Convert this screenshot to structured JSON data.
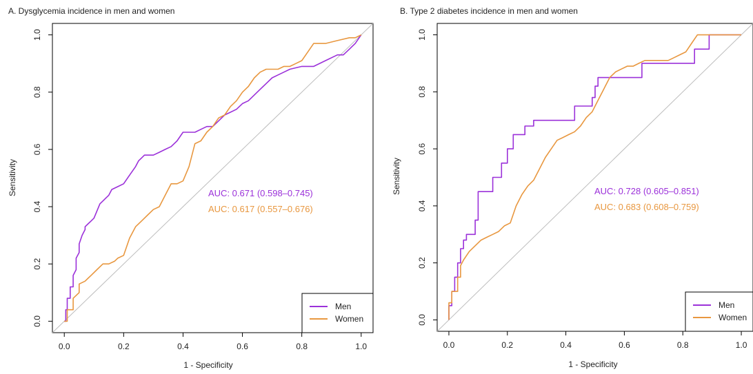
{
  "figure": {
    "colors": {
      "men": "#9b30d9",
      "women": "#e8973f",
      "reference": "#bdbdbd",
      "axis": "#000000",
      "text": "#222222"
    }
  },
  "chart_data": [
    {
      "type": "line",
      "title": "A. Dysglycemia incidence in men and women",
      "xlabel": "1 - Specificity",
      "ylabel": "Sensitivity",
      "xlim": [
        -0.04,
        1.04
      ],
      "ylim": [
        -0.04,
        1.04
      ],
      "xticks": [
        "0.0",
        "0.2",
        "0.4",
        "0.6",
        "0.8",
        "1.0"
      ],
      "yticks": [
        "0.0",
        "0.2",
        "0.4",
        "0.6",
        "0.8",
        "1.0"
      ],
      "grid": false,
      "legend": {
        "position": "bottom-right",
        "entries": [
          "Men",
          "Women"
        ]
      },
      "annotations": [
        {
          "text": "AUC: 0.671 (0.598–0.745)",
          "series": "Men"
        },
        {
          "text": "AUC: 0.617 (0.557–0.676)",
          "series": "Women"
        }
      ],
      "series": [
        {
          "name": "Men",
          "x": [
            0.0,
            0.005,
            0.005,
            0.01,
            0.01,
            0.02,
            0.02,
            0.03,
            0.03,
            0.04,
            0.04,
            0.05,
            0.05,
            0.06,
            0.07,
            0.07,
            0.08,
            0.09,
            0.1,
            0.12,
            0.13,
            0.14,
            0.15,
            0.16,
            0.18,
            0.2,
            0.22,
            0.24,
            0.25,
            0.26,
            0.27,
            0.3,
            0.32,
            0.34,
            0.36,
            0.38,
            0.4,
            0.44,
            0.46,
            0.48,
            0.5,
            0.52,
            0.54,
            0.56,
            0.58,
            0.6,
            0.62,
            0.64,
            0.66,
            0.68,
            0.7,
            0.72,
            0.74,
            0.76,
            0.8,
            0.84,
            0.88,
            0.92,
            0.94,
            0.96,
            0.98,
            1.0
          ],
          "y": [
            0.0,
            0.0,
            0.04,
            0.04,
            0.08,
            0.08,
            0.12,
            0.12,
            0.16,
            0.18,
            0.22,
            0.24,
            0.27,
            0.3,
            0.32,
            0.33,
            0.34,
            0.35,
            0.36,
            0.41,
            0.42,
            0.43,
            0.44,
            0.46,
            0.47,
            0.48,
            0.51,
            0.54,
            0.56,
            0.57,
            0.58,
            0.58,
            0.59,
            0.6,
            0.61,
            0.63,
            0.66,
            0.66,
            0.67,
            0.68,
            0.68,
            0.7,
            0.72,
            0.73,
            0.74,
            0.76,
            0.77,
            0.79,
            0.81,
            0.83,
            0.85,
            0.86,
            0.87,
            0.88,
            0.89,
            0.89,
            0.91,
            0.93,
            0.93,
            0.95,
            0.97,
            1.0
          ]
        },
        {
          "name": "Women",
          "x": [
            0.0,
            0.01,
            0.01,
            0.03,
            0.03,
            0.05,
            0.05,
            0.07,
            0.08,
            0.09,
            0.11,
            0.13,
            0.15,
            0.17,
            0.18,
            0.2,
            0.21,
            0.22,
            0.24,
            0.26,
            0.28,
            0.3,
            0.32,
            0.34,
            0.36,
            0.38,
            0.4,
            0.42,
            0.44,
            0.46,
            0.48,
            0.5,
            0.52,
            0.54,
            0.56,
            0.58,
            0.6,
            0.62,
            0.64,
            0.66,
            0.68,
            0.7,
            0.72,
            0.74,
            0.76,
            0.78,
            0.8,
            0.82,
            0.84,
            0.88,
            0.92,
            0.96,
            0.98,
            1.0
          ],
          "y": [
            0.0,
            0.0,
            0.04,
            0.04,
            0.08,
            0.1,
            0.13,
            0.14,
            0.15,
            0.16,
            0.18,
            0.2,
            0.2,
            0.21,
            0.22,
            0.23,
            0.26,
            0.29,
            0.33,
            0.35,
            0.37,
            0.39,
            0.4,
            0.44,
            0.48,
            0.48,
            0.49,
            0.54,
            0.62,
            0.63,
            0.66,
            0.68,
            0.71,
            0.72,
            0.75,
            0.77,
            0.8,
            0.82,
            0.85,
            0.87,
            0.88,
            0.88,
            0.88,
            0.89,
            0.89,
            0.9,
            0.91,
            0.94,
            0.97,
            0.97,
            0.98,
            0.99,
            0.99,
            1.0
          ]
        }
      ]
    },
    {
      "type": "line",
      "title": "B. Type 2 diabetes incidence in men and women",
      "xlabel": "1 - Specificity",
      "ylabel": "Sensitivity",
      "xlim": [
        -0.04,
        1.04
      ],
      "ylim": [
        -0.04,
        1.04
      ],
      "xticks": [
        "0.0",
        "0.2",
        "0.4",
        "0.6",
        "0.8",
        "1.0"
      ],
      "yticks": [
        "0.0",
        "0.2",
        "0.4",
        "0.6",
        "0.8",
        "1.0"
      ],
      "grid": false,
      "legend": {
        "position": "bottom-right",
        "entries": [
          "Men",
          "Women"
        ]
      },
      "annotations": [
        {
          "text": "AUC: 0.728 (0.605–0.851)",
          "series": "Men"
        },
        {
          "text": "AUC: 0.683 (0.608–0.759)",
          "series": "Women"
        }
      ],
      "series": [
        {
          "name": "Men",
          "x": [
            0.0,
            0.0,
            0.01,
            0.01,
            0.02,
            0.02,
            0.03,
            0.03,
            0.04,
            0.04,
            0.05,
            0.05,
            0.06,
            0.06,
            0.09,
            0.09,
            0.1,
            0.1,
            0.15,
            0.15,
            0.18,
            0.18,
            0.2,
            0.2,
            0.22,
            0.22,
            0.26,
            0.26,
            0.29,
            0.29,
            0.3,
            0.3,
            0.43,
            0.43,
            0.49,
            0.49,
            0.5,
            0.5,
            0.51,
            0.51,
            0.66,
            0.66,
            0.84,
            0.84,
            0.89,
            0.89,
            1.0
          ],
          "y": [
            0.0,
            0.05,
            0.05,
            0.1,
            0.1,
            0.15,
            0.15,
            0.2,
            0.2,
            0.25,
            0.25,
            0.28,
            0.28,
            0.3,
            0.3,
            0.35,
            0.35,
            0.45,
            0.45,
            0.5,
            0.5,
            0.55,
            0.55,
            0.6,
            0.6,
            0.65,
            0.65,
            0.68,
            0.68,
            0.7,
            0.7,
            0.7,
            0.7,
            0.75,
            0.75,
            0.78,
            0.78,
            0.82,
            0.82,
            0.85,
            0.85,
            0.9,
            0.9,
            0.95,
            0.95,
            1.0,
            1.0
          ]
        },
        {
          "name": "Women",
          "x": [
            0.0,
            0.0,
            0.01,
            0.01,
            0.03,
            0.03,
            0.04,
            0.04,
            0.05,
            0.07,
            0.09,
            0.11,
            0.13,
            0.15,
            0.17,
            0.19,
            0.21,
            0.23,
            0.25,
            0.27,
            0.29,
            0.31,
            0.33,
            0.35,
            0.37,
            0.39,
            0.41,
            0.43,
            0.45,
            0.47,
            0.49,
            0.51,
            0.53,
            0.55,
            0.57,
            0.59,
            0.61,
            0.63,
            0.65,
            0.67,
            0.69,
            0.71,
            0.73,
            0.75,
            0.77,
            0.79,
            0.81,
            0.83,
            0.85,
            0.87,
            0.92,
            1.0
          ],
          "y": [
            0.0,
            0.06,
            0.06,
            0.1,
            0.1,
            0.15,
            0.15,
            0.19,
            0.21,
            0.24,
            0.26,
            0.28,
            0.29,
            0.3,
            0.31,
            0.33,
            0.34,
            0.4,
            0.44,
            0.47,
            0.49,
            0.53,
            0.57,
            0.6,
            0.63,
            0.64,
            0.65,
            0.66,
            0.68,
            0.71,
            0.73,
            0.77,
            0.81,
            0.85,
            0.87,
            0.88,
            0.89,
            0.89,
            0.9,
            0.91,
            0.91,
            0.91,
            0.91,
            0.91,
            0.92,
            0.93,
            0.94,
            0.97,
            1.0,
            1.0,
            1.0,
            1.0
          ]
        }
      ]
    }
  ]
}
